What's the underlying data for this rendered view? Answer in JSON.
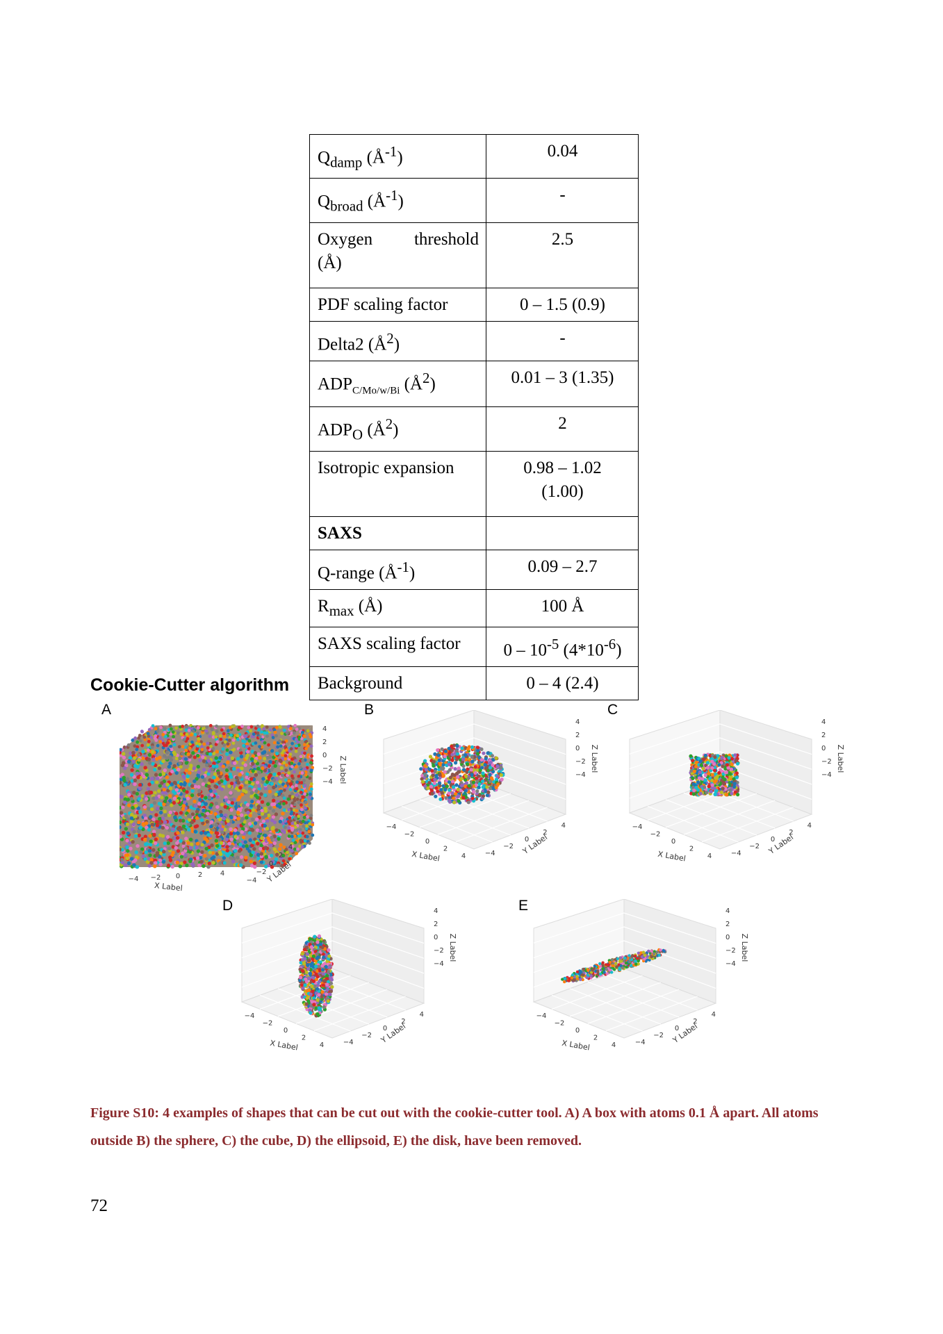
{
  "table": {
    "rows": [
      {
        "label_main": "Q",
        "label_sub": "damp",
        "label_unit": "(Å",
        "label_sup": "-1",
        "label_tail": ")",
        "value": "0.04"
      },
      {
        "label_main": "Q",
        "label_sub": "broad",
        "label_unit": "(Å",
        "label_sup": "-1",
        "label_tail": ")",
        "value": "-"
      },
      {
        "label_a": "Oxygen",
        "label_b": "threshold",
        "label_c": "(Å)",
        "value": "2.5"
      },
      {
        "label": "PDF scaling factor",
        "value": "0 – 1.5 (0.9)"
      },
      {
        "label_main": "Delta2 (Å",
        "label_sup": "2",
        "label_tail": ")",
        "value": "-"
      },
      {
        "label_main": "ADP",
        "label_sub": "C/Mo/w/Bi",
        "label_unit": "(Å",
        "label_sup": "2",
        "label_tail": ")",
        "value": "0.01 – 3 (1.35)"
      },
      {
        "label_main": "ADP",
        "label_sub": "O",
        "label_unit": "(Å",
        "label_sup": "2",
        "label_tail": ")",
        "value": "2"
      },
      {
        "label": "Isotropic expansion",
        "value_a": "0.98 – 1.02",
        "value_b": "(1.00)"
      },
      {
        "label": "SAXS",
        "value": ""
      },
      {
        "label_main": "Q-range (Å",
        "label_sup": "-1",
        "label_tail": ")",
        "value": "0.09 – 2.7"
      },
      {
        "label_main": "R",
        "label_sub": "max",
        "label_unit": "(Å)",
        "value": "100 Å"
      },
      {
        "label": "SAXS scaling factor",
        "value_a": "0 – 10",
        "value_sup1": "-5",
        "value_b": " (4*10",
        "value_sup2": "-6",
        "value_c": ")"
      },
      {
        "label": "Background",
        "value": "0 – 4 (2.4)"
      }
    ]
  },
  "section_heading": "Cookie-Cutter algorithm",
  "figure": {
    "axis_labels": {
      "x": "X Label",
      "y": "Y Label",
      "z": "Z Label"
    },
    "tick_labels": [
      "−4",
      "−2",
      "0",
      "2",
      "4"
    ],
    "panels": [
      {
        "letter": "A",
        "shape": "box"
      },
      {
        "letter": "B",
        "shape": "sphere"
      },
      {
        "letter": "C",
        "shape": "cube"
      },
      {
        "letter": "D",
        "shape": "ellipsoid"
      },
      {
        "letter": "E",
        "shape": "disk"
      }
    ],
    "dot_colors": [
      "#1f77b4",
      "#ff7f0e",
      "#2ca02c",
      "#d62728",
      "#9467bd",
      "#8c564b",
      "#e377c2",
      "#7f7f7f",
      "#bcbd22",
      "#17becf"
    ]
  },
  "caption": "Figure S10: 4 examples of shapes that can be cut out with the cookie-cutter tool. A) A box with atoms 0.1 Å apart. All atoms outside B) the sphere, C) the cube, D) the ellipsoid, E) the disk, have been removed.",
  "page_number": "72"
}
